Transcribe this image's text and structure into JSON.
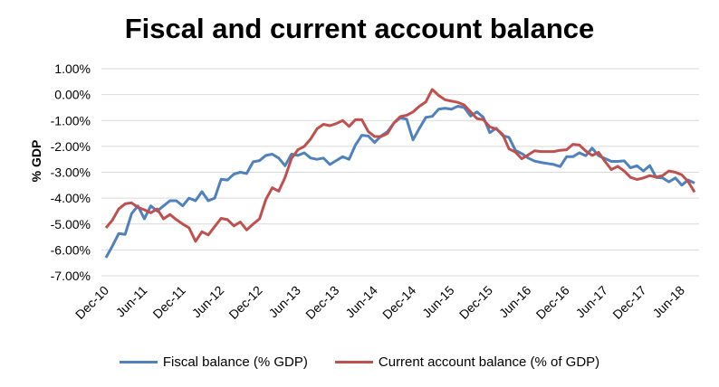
{
  "chart_data": {
    "type": "line",
    "title": "Fiscal and current account balance",
    "xlabel": "",
    "ylabel": "% GDP",
    "ylim": [
      -7,
      1
    ],
    "y_ticks": [
      "1.00%",
      "0.00%",
      "-1.00%",
      "-2.00%",
      "-3.00%",
      "-4.00%",
      "-5.00%",
      "-6.00%",
      "-7.00%"
    ],
    "y_tick_values": [
      1,
      0,
      -1,
      -2,
      -3,
      -4,
      -5,
      -6,
      -7
    ],
    "x_frequency": "monthly, starting Dec-10",
    "x_tick_labels": [
      "Dec-10",
      "Jun-11",
      "Dec-11",
      "Jun-12",
      "Dec-12",
      "Jun-13",
      "Dec-13",
      "Jun-14",
      "Dec-14",
      "Jun-15",
      "Dec-15",
      "Jun-16",
      "Dec-16",
      "Jun-17",
      "Dec-17",
      "Jun-18"
    ],
    "x_tick_every_months": 6,
    "grid": "horizontal",
    "legend_position": "bottom",
    "series": [
      {
        "name": "Fiscal balance (% GDP)",
        "color": "#4f81bd",
        "values": [
          -6.3,
          -5.85,
          -5.37,
          -5.4,
          -4.6,
          -4.3,
          -4.8,
          -4.3,
          -4.5,
          -4.3,
          -4.1,
          -4.1,
          -4.3,
          -4.0,
          -4.1,
          -3.75,
          -4.1,
          -4.0,
          -3.27,
          -3.3,
          -3.07,
          -3.0,
          -3.05,
          -2.6,
          -2.55,
          -2.35,
          -2.3,
          -2.45,
          -2.75,
          -2.3,
          -2.35,
          -2.25,
          -2.45,
          -2.5,
          -2.45,
          -2.7,
          -2.55,
          -2.4,
          -2.5,
          -1.95,
          -1.57,
          -1.6,
          -1.85,
          -1.6,
          -1.43,
          -1.1,
          -0.9,
          -0.95,
          -1.75,
          -1.3,
          -0.88,
          -0.84,
          -0.56,
          -0.53,
          -0.56,
          -0.45,
          -0.5,
          -0.83,
          -0.67,
          -0.88,
          -1.47,
          -1.3,
          -1.58,
          -1.65,
          -2.15,
          -2.28,
          -2.45,
          -2.57,
          -2.62,
          -2.66,
          -2.7,
          -2.78,
          -2.4,
          -2.4,
          -2.25,
          -2.36,
          -2.07,
          -2.36,
          -2.47,
          -2.58,
          -2.58,
          -2.56,
          -2.83,
          -2.75,
          -2.95,
          -2.74,
          -3.2,
          -3.22,
          -3.37,
          -3.22,
          -3.5,
          -3.3,
          -3.42
        ]
      },
      {
        "name": "Current account balance (% of GDP)",
        "color": "#c0504d",
        "values": [
          -5.15,
          -4.85,
          -4.42,
          -4.22,
          -4.18,
          -4.36,
          -4.45,
          -4.57,
          -4.42,
          -4.8,
          -4.63,
          -4.83,
          -5.0,
          -5.15,
          -5.67,
          -5.3,
          -5.42,
          -5.1,
          -4.78,
          -4.83,
          -5.07,
          -4.92,
          -5.23,
          -5.0,
          -4.8,
          -4.05,
          -3.6,
          -3.73,
          -3.2,
          -2.47,
          -2.13,
          -2.0,
          -1.71,
          -1.32,
          -1.15,
          -1.2,
          -1.12,
          -1.0,
          -1.23,
          -0.97,
          -0.97,
          -1.43,
          -1.62,
          -1.62,
          -1.5,
          -1.1,
          -0.85,
          -0.8,
          -0.67,
          -0.45,
          -0.28,
          0.2,
          -0.03,
          -0.2,
          -0.25,
          -0.3,
          -0.4,
          -0.67,
          -0.93,
          -0.97,
          -1.25,
          -1.33,
          -1.53,
          -2.1,
          -2.22,
          -2.48,
          -2.33,
          -2.17,
          -2.2,
          -2.2,
          -2.2,
          -2.15,
          -2.13,
          -1.92,
          -1.95,
          -2.18,
          -2.35,
          -2.23,
          -2.58,
          -2.9,
          -2.77,
          -2.95,
          -3.2,
          -3.28,
          -3.22,
          -3.13,
          -3.19,
          -3.13,
          -2.95,
          -3.0,
          -3.1,
          -3.36,
          -3.77
        ]
      }
    ]
  }
}
